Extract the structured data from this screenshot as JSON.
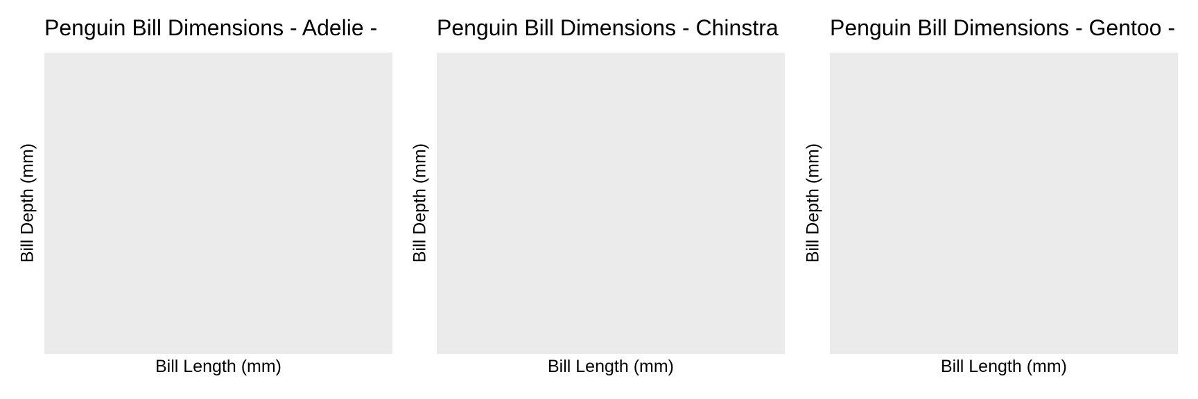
{
  "chart_data": [
    {
      "type": "scatter",
      "title": "Penguin Bill Dimensions - Adelie -",
      "xlabel": "Bill Length (mm)",
      "ylabel": "Bill Depth (mm)",
      "series": [],
      "grid": false,
      "panel_background": "#ebebeb"
    },
    {
      "type": "scatter",
      "title": "Penguin Bill Dimensions - Chinstra",
      "xlabel": "Bill Length (mm)",
      "ylabel": "Bill Depth (mm)",
      "series": [],
      "grid": false,
      "panel_background": "#ebebeb"
    },
    {
      "type": "scatter",
      "title": "Penguin Bill Dimensions - Gentoo -",
      "xlabel": "Bill Length (mm)",
      "ylabel": "Bill Depth (mm)",
      "series": [],
      "grid": false,
      "panel_background": "#ebebeb"
    }
  ]
}
